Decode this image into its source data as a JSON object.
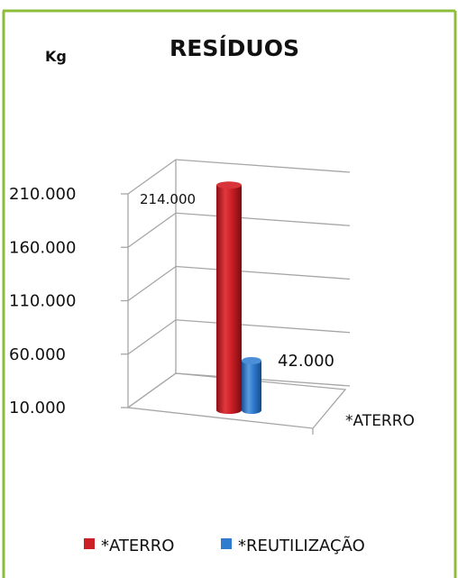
{
  "chart_data": {
    "type": "bar",
    "style": "3d-cylinder",
    "title": "RESÍDUOS",
    "ylabel": "Kg",
    "categories": [
      "*ATERRO"
    ],
    "yticks": [
      "10.000",
      "60.000",
      "110.000",
      "160.000",
      "210.000"
    ],
    "ylim": [
      10000,
      210000
    ],
    "series": [
      {
        "name": "*ATERRO",
        "values": [
          214000
        ],
        "label": "214.000",
        "color": "#cc1f26"
      },
      {
        "name": "*REUTILIZAÇÃO",
        "values": [
          42000
        ],
        "label": "42.000",
        "color": "#2f7bd0"
      }
    ],
    "legend": "bottom",
    "grid": true
  },
  "colors": {
    "border": "#8ebd3c"
  }
}
